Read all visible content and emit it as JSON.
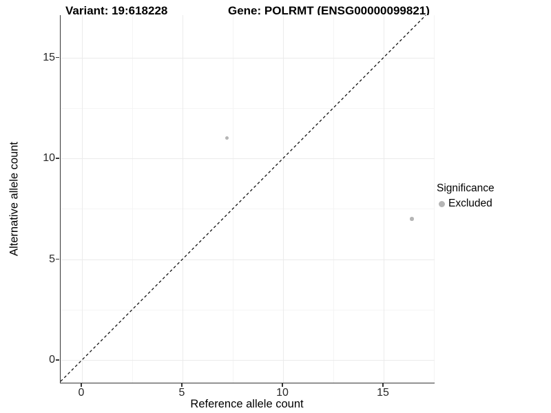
{
  "chart_data": {
    "type": "scatter",
    "title_variant": "Variant: 19:618228",
    "title_gene": "Gene: POLRMT (ENSG00000099821)",
    "xlabel": "Reference allele count",
    "ylabel": "Alternative allele count",
    "x_ticks": [
      0,
      5,
      10,
      15
    ],
    "y_ticks": [
      0,
      5,
      10,
      15
    ],
    "x_minor_gridlines": [
      2.5,
      7.5,
      12.5,
      17.5
    ],
    "y_minor_gridlines": [
      2.5,
      7.5,
      12.5
    ],
    "xlim": [
      -1.06,
      17.53
    ],
    "ylim": [
      -1.13,
      17.1
    ],
    "grid": "major and minor, light gray on white",
    "legend": {
      "position": "right",
      "title": "Significance",
      "items": [
        {
          "label": "Excluded",
          "color": "#b5b5b5"
        }
      ]
    },
    "identity_line": {
      "type": "y=x",
      "style": "dashed",
      "color": "#111111"
    },
    "series": [
      {
        "name": "Excluded",
        "color": "#b5b5b5",
        "marker": "circle",
        "points": [
          {
            "x": 7.2,
            "y": 11
          },
          {
            "x": 16.4,
            "y": 7
          }
        ]
      }
    ]
  }
}
